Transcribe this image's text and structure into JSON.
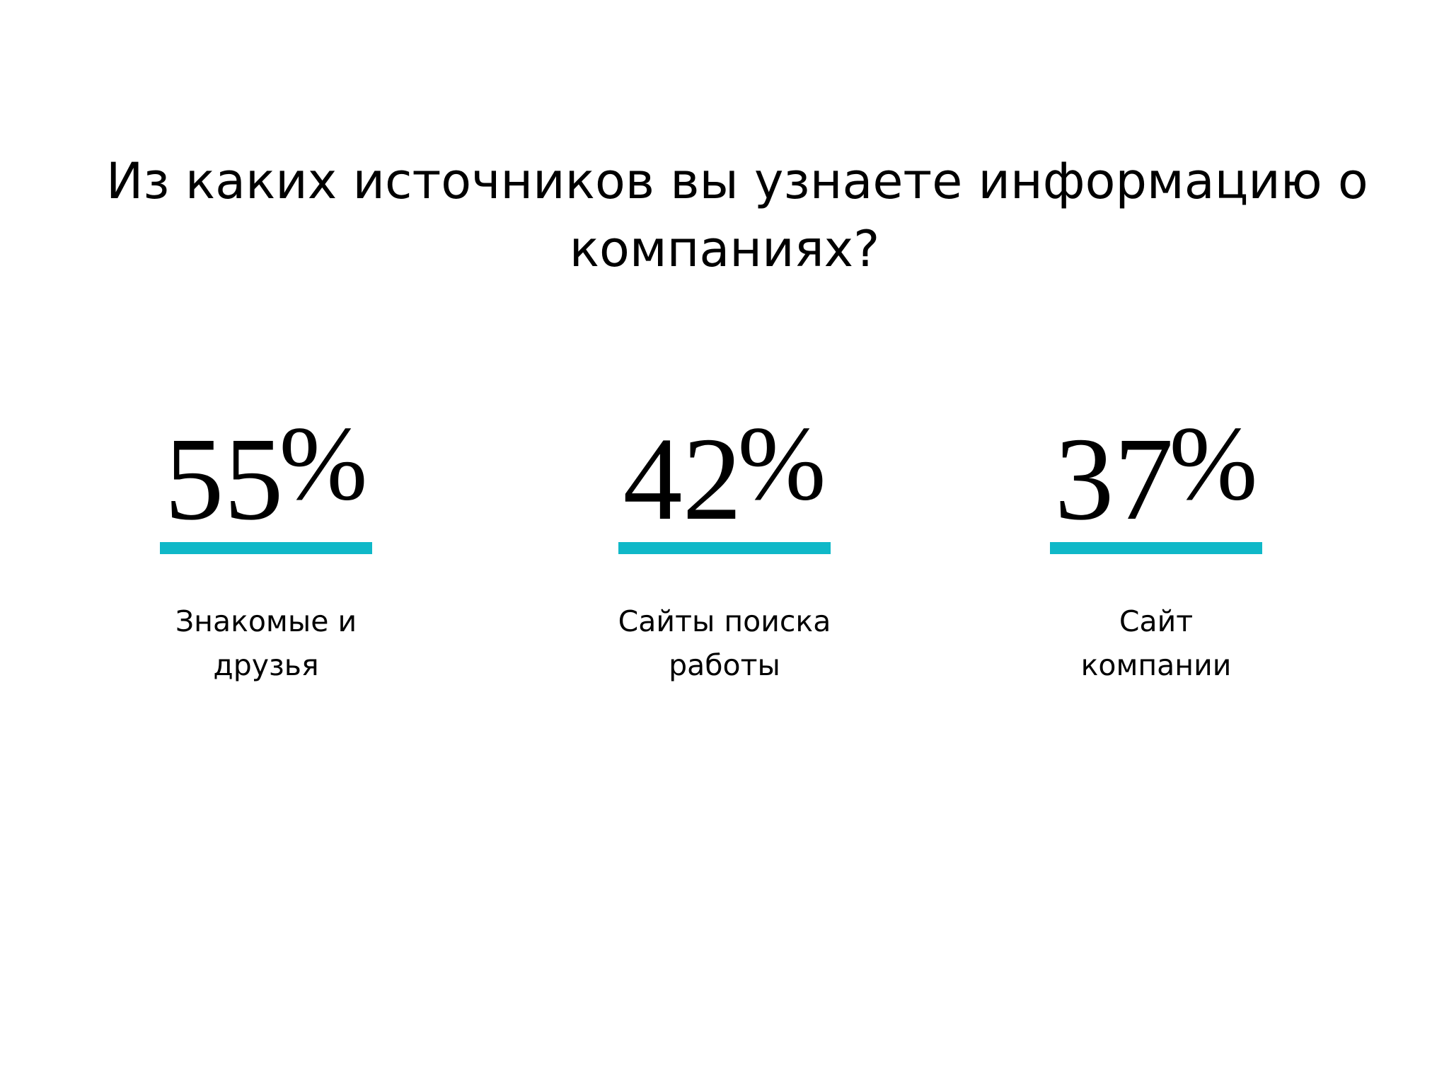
{
  "slide": {
    "title_lines": [
      "Из каких источников вы узнаете информацию о",
      "компаниях?"
    ]
  },
  "stats": [
    {
      "value": 55,
      "value_text": "55",
      "unit": "%",
      "caption_lines": [
        "Знакомые и",
        "друзья"
      ]
    },
    {
      "value": 42,
      "value_text": "42",
      "unit": "%",
      "caption_lines": [
        "Сайты поиска",
        "работы"
      ]
    },
    {
      "value": 37,
      "value_text": "37",
      "unit": "%",
      "caption_lines": [
        "Сайт",
        "компании"
      ]
    }
  ],
  "colors": {
    "background": "#ffffff",
    "text": "#000000",
    "accent": "#0fb8c8"
  }
}
